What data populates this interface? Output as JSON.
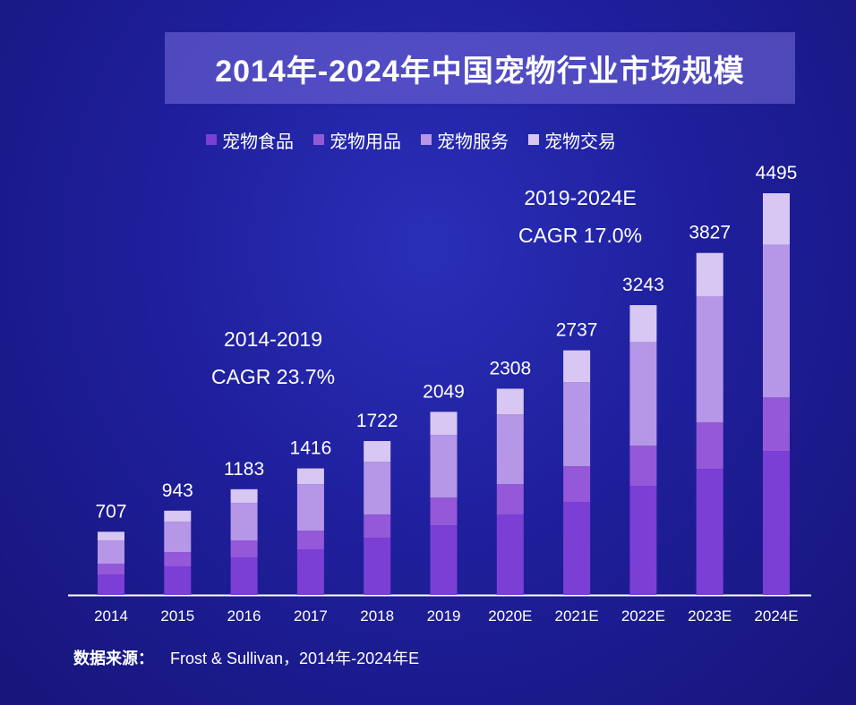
{
  "title": "2014年-2024年中国宠物行业市场规模",
  "source": {
    "label": "数据来源：",
    "text": "Frost & Sullivan，2014年-2024年E"
  },
  "cagr_notes": [
    {
      "period": "2014-2019",
      "cagr": "CAGR 23.7%"
    },
    {
      "period": "2019-2024E",
      "cagr": "CAGR 17.0%"
    }
  ],
  "chart_data": {
    "type": "bar",
    "stacked": true,
    "title": "2014年-2024年中国宠物行业市场规模",
    "categories": [
      "2014",
      "2015",
      "2016",
      "2017",
      "2018",
      "2019",
      "2020E",
      "2021E",
      "2022E",
      "2023E",
      "2024E"
    ],
    "totals": [
      707,
      943,
      1183,
      1416,
      1722,
      2049,
      2308,
      2737,
      3243,
      3827,
      4495
    ],
    "series": [
      {
        "name": "宠物食品",
        "color": "#7b3fd6",
        "values": [
          230,
          320,
          420,
          510,
          640,
          780,
          900,
          1040,
          1220,
          1410,
          1610
        ]
      },
      {
        "name": "宠物用品",
        "color": "#9458d9",
        "values": [
          120,
          160,
          190,
          210,
          260,
          310,
          340,
          400,
          450,
          520,
          600
        ]
      },
      {
        "name": "宠物服务",
        "color": "#b696e6",
        "values": [
          260,
          340,
          420,
          520,
          590,
          700,
          780,
          940,
          1160,
          1410,
          1710
        ]
      },
      {
        "name": "宠物交易",
        "color": "#d7c7f2",
        "values": [
          97,
          123,
          153,
          176,
          232,
          259,
          288,
          357,
          413,
          487,
          575
        ]
      }
    ],
    "ylim": [
      0,
      4495
    ],
    "legend_position": "top",
    "grid": false
  }
}
